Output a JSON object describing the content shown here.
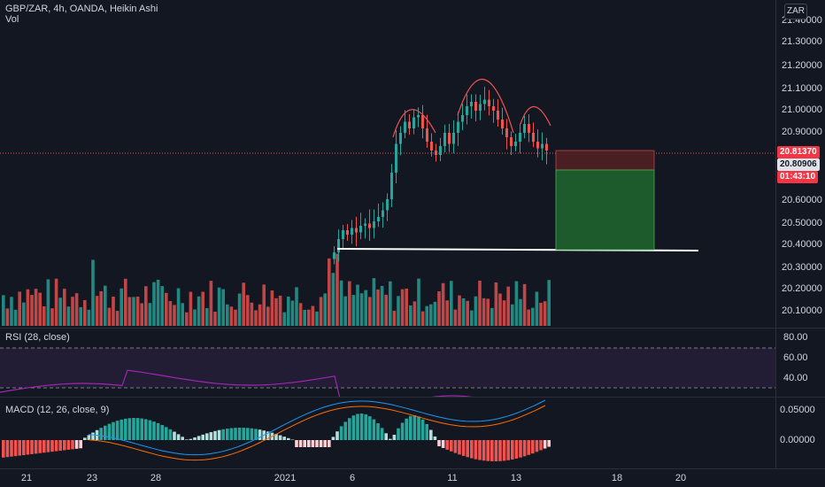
{
  "header": {
    "title": "GBP/ZAR, 4h, OANDA, Heikin Ashi",
    "vol_label": "Vol",
    "currency": "ZAR"
  },
  "price_axis": [
    "21.40000",
    "21.30000",
    "21.20000",
    "21.10000",
    "21.00000",
    "20.90000",
    "20.60000",
    "20.50000",
    "20.40000",
    "20.30000",
    "20.20000",
    "20.10000"
  ],
  "badges": {
    "current_price": "20.81370",
    "target_price": "20.80906",
    "countdown": "01:43:10"
  },
  "rsi": {
    "label": "RSI (28, close)",
    "axis": [
      "80.00",
      "60.00",
      "40.00"
    ]
  },
  "macd": {
    "label": "MACD (12, 26, close, 9)",
    "axis": [
      "0.05000",
      "0.00000"
    ]
  },
  "time_axis": [
    "21",
    "23",
    "28",
    "2021",
    "6",
    "11",
    "13",
    "18",
    "20"
  ],
  "colors": {
    "up": "#26a69a",
    "down": "#ef5350",
    "background": "#131722",
    "rsi_line": "#9c27b0"
  }
}
